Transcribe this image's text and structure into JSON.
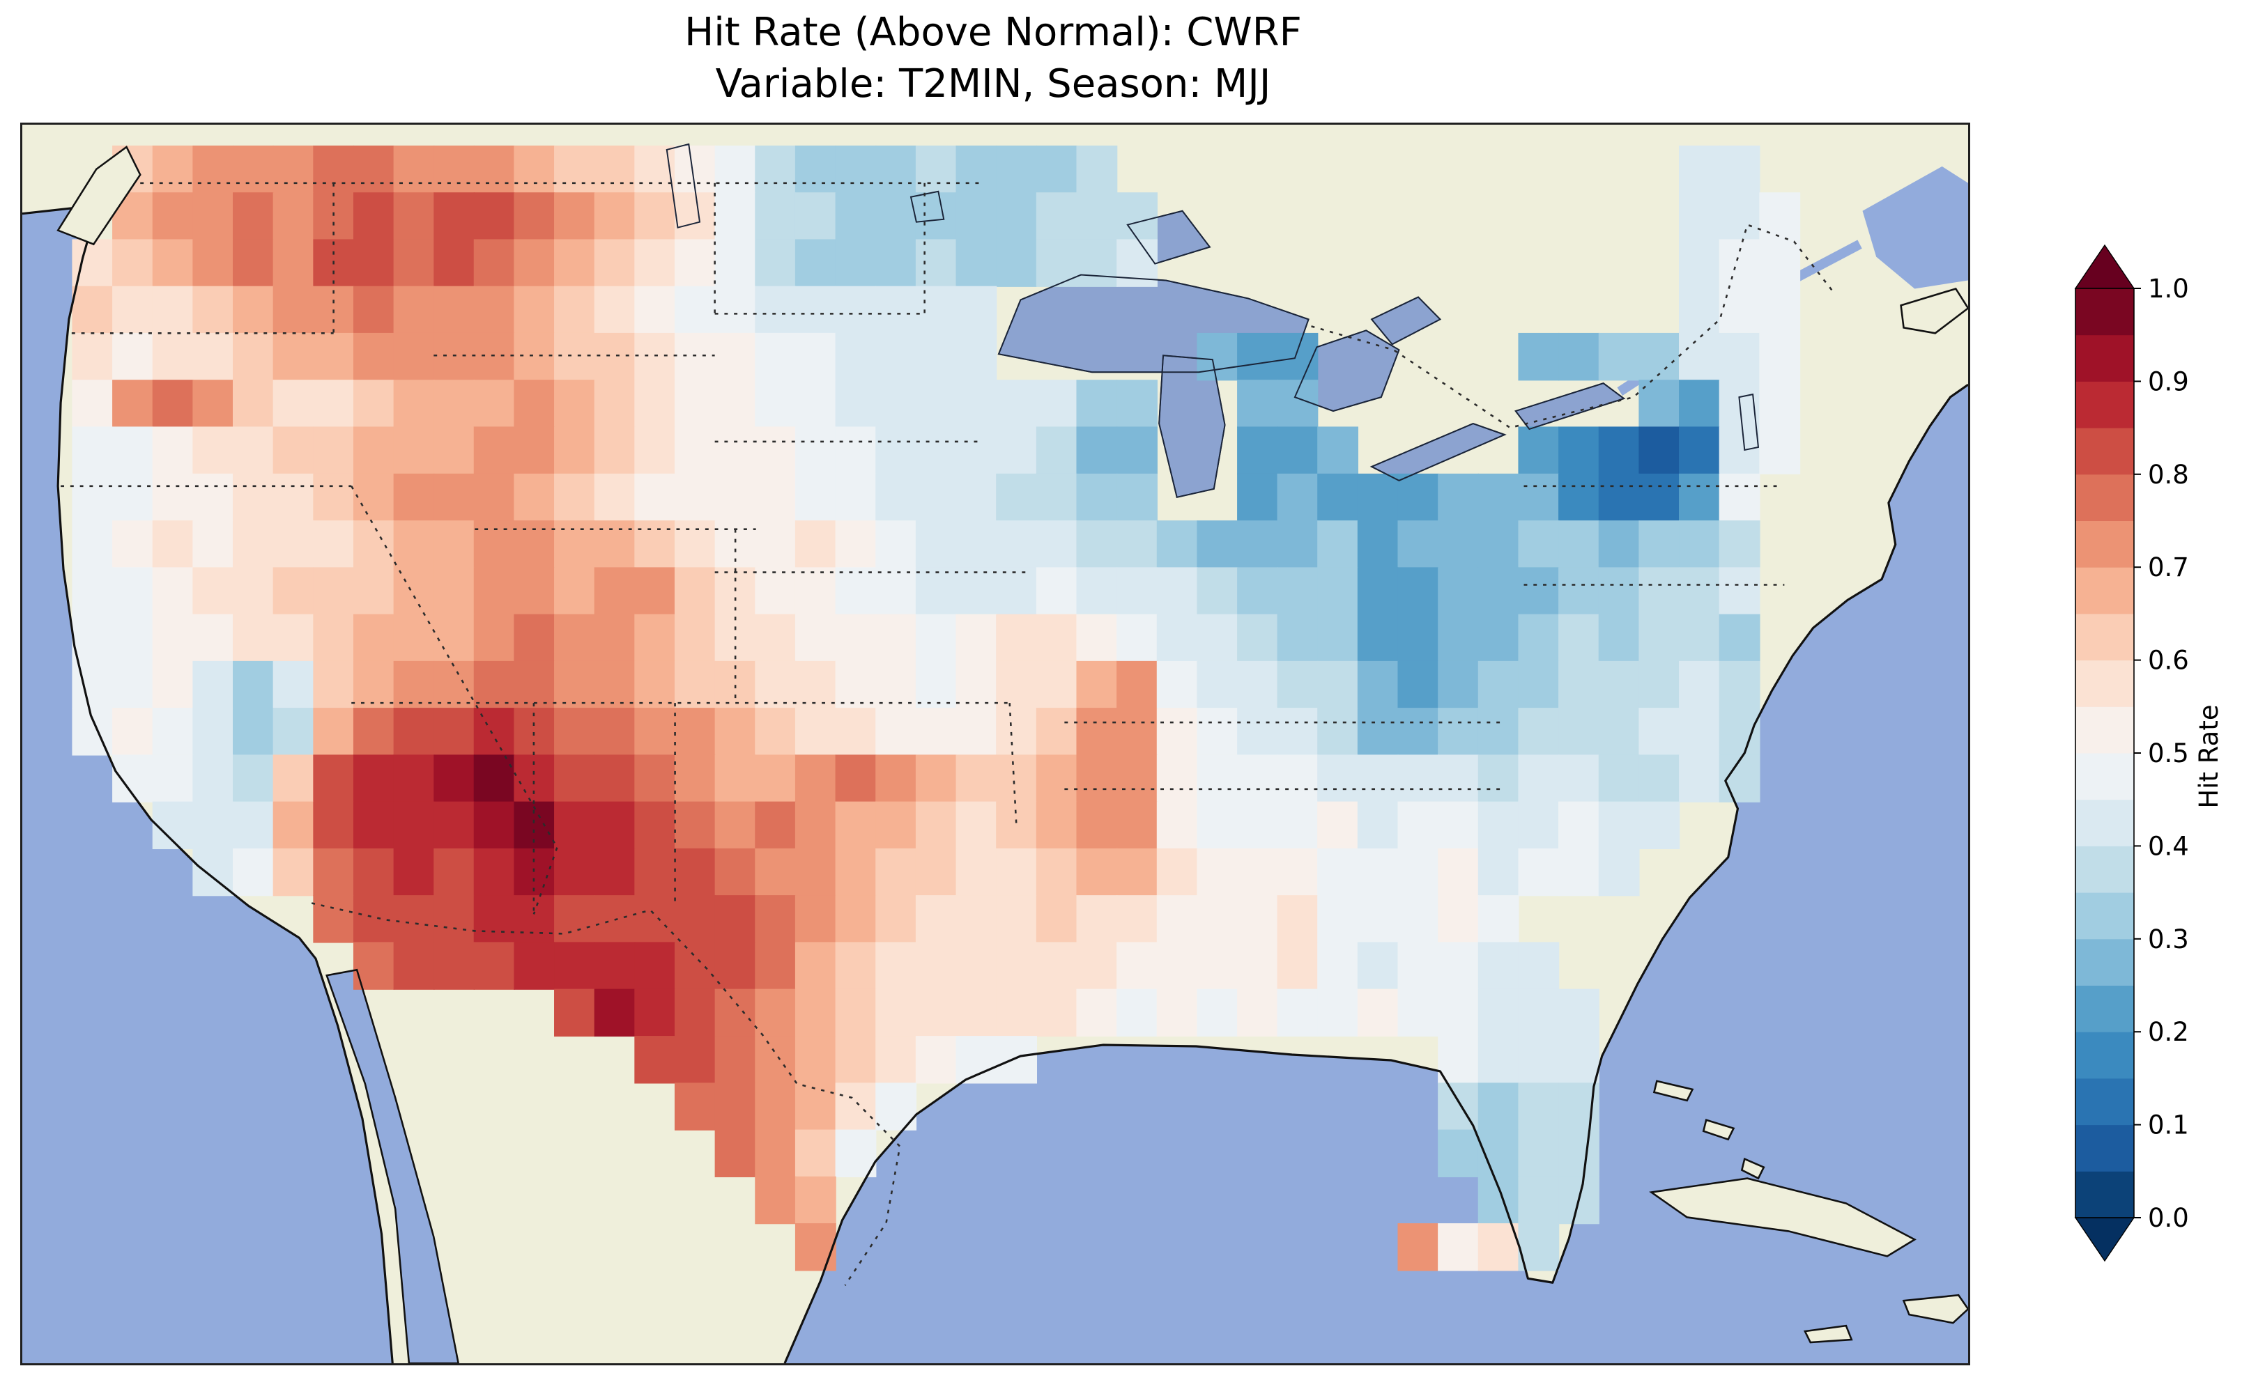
{
  "figure": {
    "title_line1": "Hit Rate (Above Normal): CWRF",
    "title_line2": "Variable: T2MIN, Season: MJJ"
  },
  "map": {
    "ocean_color": "#92abdc",
    "land_color": "#efefdb",
    "lake_color": "#8ca3d0",
    "coast_color": "#111111",
    "border_dot_color": "#2b2b2b",
    "frame_color": "#1f1f1f"
  },
  "colorbar": {
    "label": "Hit Rate",
    "tick_labels": [
      "1.0",
      "0.9",
      "0.8",
      "0.7",
      "0.6",
      "0.5",
      "0.4",
      "0.3",
      "0.2",
      "0.1",
      "0.0"
    ],
    "band_colors": [
      "#0C4278",
      "#1C5C9F",
      "#2A74B2",
      "#3B8ABF",
      "#569FC9",
      "#7EB8D7",
      "#A1CDE1",
      "#C1DDE8",
      "#DAE9F1",
      "#EDF2F5",
      "#F8F0EB",
      "#FBE2D3",
      "#FACDB5",
      "#F6B293",
      "#EC9374",
      "#DD715A",
      "#CD4E44",
      "#BB2A33",
      "#9F1228",
      "#7A0622"
    ],
    "over_color": "#67001F",
    "under_color": "#053061"
  },
  "chart_data": {
    "type": "heatmap",
    "title": "Hit Rate (Above Normal): CWRF",
    "subtitle": "Variable: T2MIN, Season: MJJ",
    "model": "CWRF",
    "variable": "T2MIN",
    "season": "MJJ",
    "metric": "Hit Rate (Above Normal)",
    "region": "Contiguous United States",
    "colormap": "RdBu_r (dark blue = 0.0 low hit rate, white = 0.5, dark red = 1.0 high hit rate)",
    "value_range": [
      0.0,
      1.0
    ],
    "colorbar_ticks": [
      0.0,
      0.1,
      0.2,
      0.3,
      0.4,
      0.5,
      0.6,
      0.7,
      0.8,
      0.9,
      1.0
    ],
    "colorbar_label": "Hit Rate",
    "grid_shape": [
      24,
      44
    ],
    "grid_encoding": "24 row strings north-to-south, 44 chars west-to-east. '.' = no data (outside CONUS). Characters 0-9,A-K encode hit rate = index/20 (0=0.00, 5=0.25, A=0.50, E=0.70, G=0.80, J=0.95, K=1.00).",
    "grid_rows": [
      "..CDEEEFFEEEDCCBA9766676667..............88.",
      "..DEEFEFGFGGFEDCB97766666777.............889",
      ".BCDEFEGGFGFEDCBA97666766778.............899",
      ".CBBCDEEFEEEDCBA99888888.................899",
      ".BABBCDDEEEEDCCBAA998888.....544.....5566889",
      ".AEFECBBCDDDEDCBAA9988888866..55........5489",
      ".99ABBCCDDDEEDCBAAA998888755..445....4321289",
      ".99AABBCDEEEDCBAAAA998887766..4544455532249.",
      ".9ABABBBCDDEEDDCBAABA9888877655564555665667.",
      ".99ABBCCCDDEEDEECBAA99888988876664455566778.",
      ".99AABBCDDDEFEEDCBBAAA9ABBA9887664455676776.",
      ".99A868CDEEFFEEDCCBBAA9ABBDE988775456677787.",
      ".9A9867DFGGHGFFEEDCBBAAABCEEA98875566777887.",
      "..9987CGHHIJHGGFEDDEFEDCCDEEA99988887887787.",
      "...888DGHHHIJHHGFEFEDDCBCDEEA999A89988988...",
      "....89CFGHGHIHHGGFEEDCCBBCDDBAAA999A8998....",
      ".......FGGGHHGGGGGFEDCBBBCBBAAAB999A9.......",
      "........FGGGHHHHGGFDCBBBBBBAAAAB989988......",
      ".............GIHGFEDCBBBBBA9A9A99A99888.....",
      "...............GGFEDCBA99..........9888.....",
      "................FFEDB9.............7677.....",
      ".................FEC9..............6677.....",
      "..................ED................677.....",
      "...................E..............EAB7......"
    ]
  }
}
